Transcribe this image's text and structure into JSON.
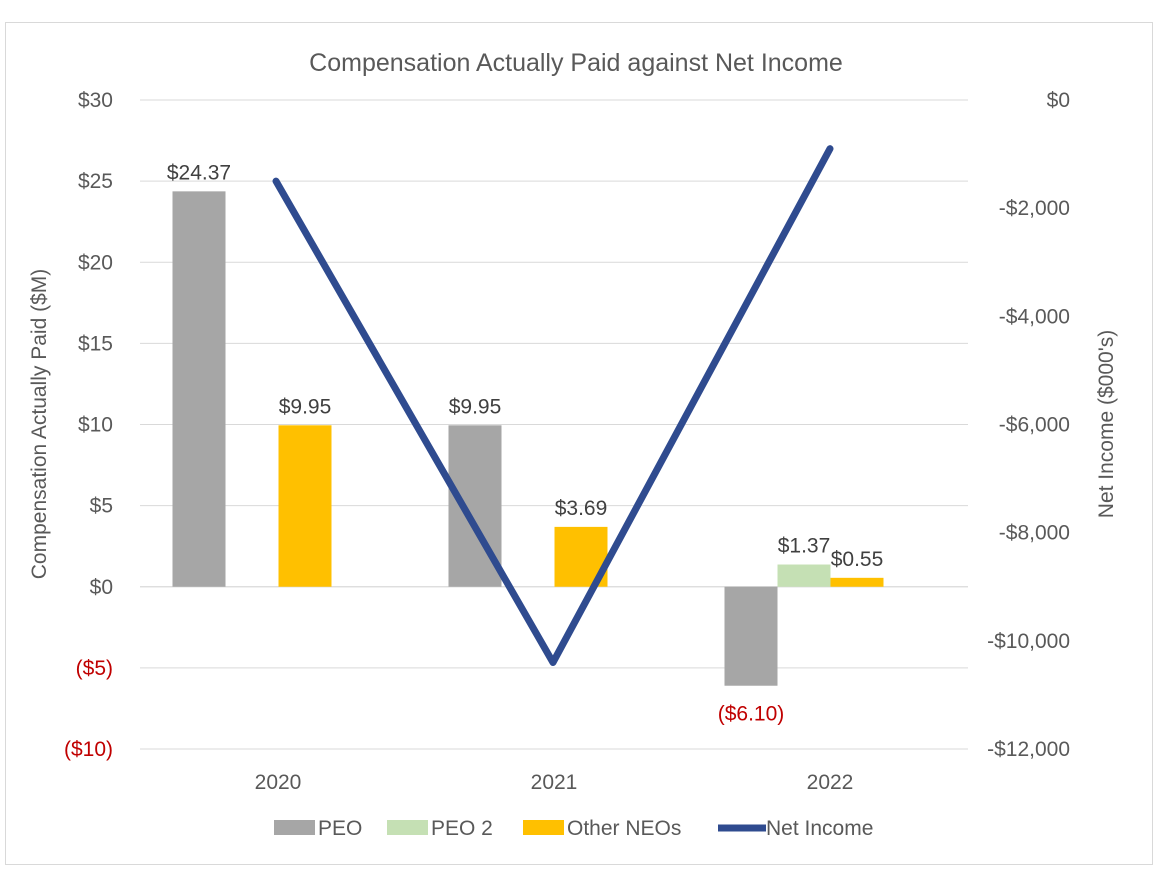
{
  "chart_data": {
    "type": "bar",
    "title": "Compensation Actually Paid against Net Income",
    "categories": [
      "2020",
      "2021",
      "2022"
    ],
    "ylabel": "Compensation Actually Paid ($M)",
    "y2label": "Net Income ($000's)",
    "ylim": [
      -10,
      30
    ],
    "y2lim": [
      -12000,
      0
    ],
    "yticks": [
      30,
      25,
      20,
      15,
      10,
      5,
      0,
      -5,
      -10
    ],
    "ytick_labels": [
      "$30",
      "$25",
      "$20",
      "$15",
      "$10",
      "$5",
      "$0",
      "($5)",
      "($10)"
    ],
    "y2ticks": [
      0,
      -2000,
      -4000,
      -6000,
      -8000,
      -10000,
      -12000
    ],
    "y2tick_labels": [
      "$0",
      "-$2,000",
      "-$4,000",
      "-$6,000",
      "-$8,000",
      "-$10,000",
      "-$12,000"
    ],
    "negative_label_color": "#c00000",
    "grid": true,
    "legend_position": "bottom",
    "series": [
      {
        "name": "PEO",
        "type": "bar",
        "color": "#a6a6a6",
        "values": [
          24.37,
          9.95,
          -6.1
        ],
        "labels": [
          "$24.37",
          "$9.95",
          "($6.10)"
        ]
      },
      {
        "name": "PEO 2",
        "type": "bar",
        "color": "#c5e0b4",
        "values": [
          null,
          null,
          1.37
        ],
        "labels": [
          null,
          null,
          "$1.37"
        ]
      },
      {
        "name": "Other NEOs",
        "type": "bar",
        "color": "#ffc000",
        "values": [
          9.95,
          3.69,
          0.55
        ],
        "labels": [
          "$9.95",
          "$3.69",
          "$0.55"
        ]
      },
      {
        "name": "Net Income",
        "type": "line",
        "axis": "secondary",
        "color": "#2f4b8f",
        "values": [
          -1500,
          -10400,
          -900
        ]
      }
    ]
  }
}
